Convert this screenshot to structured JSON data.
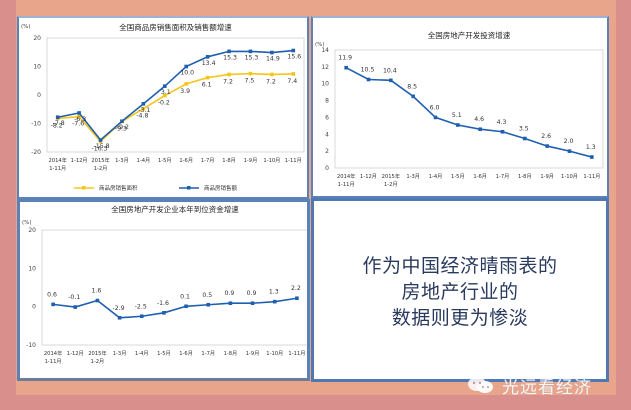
{
  "colors": {
    "background_outer": "#d98f8c",
    "background_inner": "#e9a48c",
    "panel_border": "#5a82b8",
    "series_blue": "#1f5fb0",
    "series_yellow": "#f5c518",
    "message_text": "#2a3a5e"
  },
  "chart_data": [
    {
      "type": "line",
      "title": "全国商品房销售面积及销售额增速",
      "ylabel": "(%)",
      "ylim": [
        -20,
        20
      ],
      "yticks": [
        20,
        10,
        0,
        -10,
        -20
      ],
      "categories": [
        "2014年 1-11月",
        "1-12月",
        "2015年 1-2月",
        "1-3月",
        "1-4月",
        "1-5月",
        "1-6月",
        "1-7月",
        "1-8月",
        "1-9月",
        "1-10月",
        "1-11月"
      ],
      "series": [
        {
          "name": "商品房销售面积",
          "color": "#f5c518",
          "values": [
            -8.2,
            -7.6,
            -16.3,
            -9.3,
            -4.8,
            -0.2,
            3.9,
            6.1,
            7.2,
            7.5,
            7.2,
            7.4
          ]
        },
        {
          "name": "商品房销售额",
          "color": "#1f5fb0",
          "values": [
            -7.8,
            -6.3,
            -15.8,
            -9.2,
            -3.1,
            3.1,
            10.0,
            13.4,
            15.3,
            15.3,
            14.9,
            15.6
          ]
        }
      ],
      "legend_position": "bottom"
    },
    {
      "type": "line",
      "title": "全国房地产开发投资增速",
      "ylabel": "(%)",
      "ylim": [
        0,
        14
      ],
      "yticks": [
        14,
        12,
        10,
        8,
        6,
        4,
        2,
        0
      ],
      "categories": [
        "2014年 1-11月",
        "1-12月",
        "2015年 1-2月",
        "1-3月",
        "1-4月",
        "1-5月",
        "1-6月",
        "1-7月",
        "1-8月",
        "1-9月",
        "1-10月",
        "1-11月"
      ],
      "series": [
        {
          "name": "全国房地产开发投资增速",
          "color": "#1f5fb0",
          "values": [
            11.9,
            10.5,
            10.4,
            8.5,
            6.0,
            5.1,
            4.6,
            4.3,
            3.5,
            2.6,
            2.0,
            1.3
          ]
        }
      ]
    },
    {
      "type": "line",
      "title": "全国房地产开发企业本年到位资金增速",
      "ylabel": "(%)",
      "ylim": [
        -10,
        20
      ],
      "yticks": [
        20,
        10,
        0,
        -10
      ],
      "categories": [
        "2014年 1-11月",
        "1-12月",
        "2015年 1-2月",
        "1-3月",
        "1-4月",
        "1-5月",
        "1-6月",
        "1-7月",
        "1-8月",
        "1-9月",
        "1-10月",
        "1-11月"
      ],
      "series": [
        {
          "name": "全国房地产开发企业本年到位资金增速",
          "color": "#1f5fb0",
          "values": [
            0.6,
            -0.1,
            1.6,
            -2.9,
            -2.5,
            -1.6,
            0.1,
            0.5,
            0.9,
            0.9,
            1.3,
            2.2
          ]
        }
      ]
    }
  ],
  "message": {
    "lines": [
      "作为中国经济晴雨表的",
      "房地产行业的",
      "数据则更为惨淡"
    ]
  },
  "watermark": {
    "icon": "wechat-icon",
    "text": "光远看经济"
  }
}
